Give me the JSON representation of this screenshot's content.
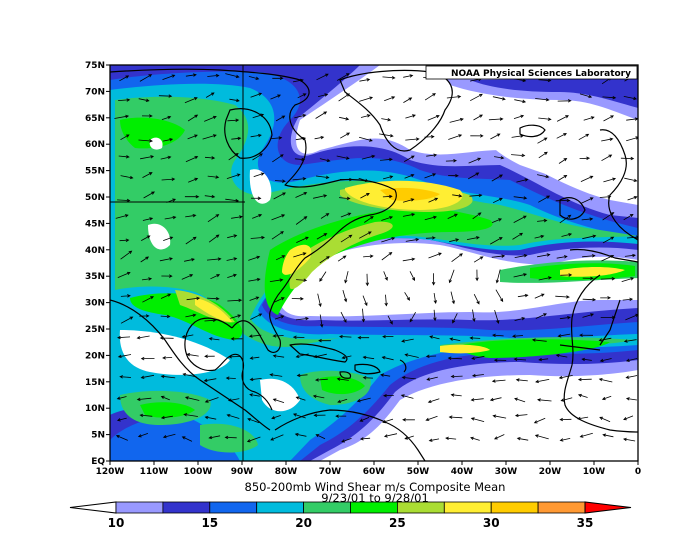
{
  "credit": "NOAA Physical Sciences Laboratory",
  "title": "850-200mb Wind Shear m/s Composite Mean",
  "date_range": "9/23/01 to 9/28/01",
  "chart_data": {
    "type": "heatmap",
    "title": "850-200mb Wind Shear m/s Composite Mean",
    "subtitle": "9/23/01 to 9/28/01",
    "x_range": [
      -120,
      0
    ],
    "y_range": [
      0,
      75
    ],
    "x_tick_labels": [
      "120W",
      "110W",
      "100W",
      "90W",
      "80W",
      "70W",
      "60W",
      "50W",
      "40W",
      "30W",
      "20W",
      "10W",
      "0"
    ],
    "y_tick_labels": [
      "EQ",
      "5N",
      "10N",
      "15N",
      "20N",
      "25N",
      "30N",
      "35N",
      "40N",
      "45N",
      "50N",
      "55N",
      "60N",
      "65N",
      "70N",
      "75N"
    ],
    "colorbar": {
      "labels": [
        "10",
        "15",
        "20",
        "25",
        "30",
        "35"
      ],
      "colors": [
        "#9999ff",
        "#3333cc",
        "#1166ee",
        "#00bbdd",
        "#33cc66",
        "#00ee00",
        "#aadd33",
        "#ffee33",
        "#ffcc00",
        "#ff9933",
        "#ff5500",
        "#ff0000"
      ]
    },
    "shear_maxima": [
      {
        "lon": -52,
        "lat": 48,
        "value": 28
      },
      {
        "lon": -85,
        "lat": 37,
        "value": 27
      },
      {
        "lon": -100,
        "lat": 27,
        "value": 26
      },
      {
        "lon": -50,
        "lat": 21,
        "value": 25
      },
      {
        "lon": -22,
        "lat": 33,
        "value": 25
      },
      {
        "lon": -15,
        "lat": 21,
        "value": 22
      },
      {
        "lon": -65,
        "lat": 15,
        "value": 22
      },
      {
        "lon": -108,
        "lat": 50,
        "value": 21
      },
      {
        "lon": -110,
        "lat": 10,
        "value": 20
      }
    ]
  }
}
